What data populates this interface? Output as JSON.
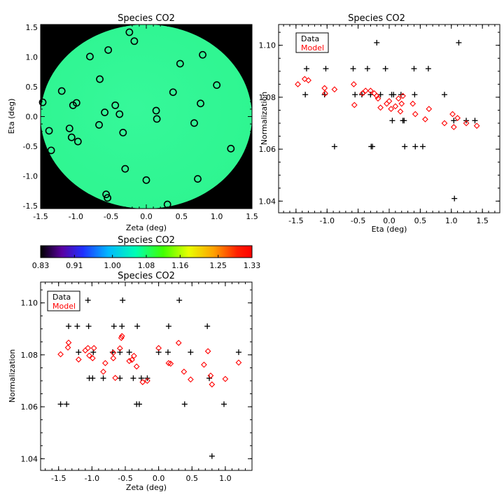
{
  "chart_data": [
    {
      "type": "scatter",
      "id": "map",
      "title": "Species CO2",
      "xlabel": "Zeta (deg)",
      "ylabel": "Eta (deg)",
      "xlim": [
        -1.5,
        1.5
      ],
      "ylim": [
        -1.55,
        1.55
      ],
      "xticks": [
        "-1.5",
        "-1.0",
        "-0.5",
        "0.0",
        "0.5",
        "1.0",
        "1.5"
      ],
      "xtick_values": [
        -1.5,
        -1.0,
        -0.5,
        0.0,
        0.5,
        1.0,
        1.5
      ],
      "yticks": [
        "1.5",
        "1.0",
        "0.5",
        "0.0",
        "-0.5",
        "-1.0",
        "-1.5"
      ],
      "ytick_values": [
        1.5,
        1.0,
        0.5,
        0.0,
        -0.5,
        -1.0,
        -1.5
      ],
      "field_radius_deg": 1.5,
      "field_value": 1.085,
      "background": "#000000",
      "field_color": "#33f79a",
      "marker": "open-circle",
      "points": [
        {
          "zeta": -0.24,
          "eta": 1.42
        },
        {
          "zeta": -0.17,
          "eta": 1.27
        },
        {
          "zeta": -0.54,
          "eta": 1.12
        },
        {
          "zeta": -0.8,
          "eta": 1.01
        },
        {
          "zeta": 0.8,
          "eta": 1.04
        },
        {
          "zeta": 0.48,
          "eta": 0.89
        },
        {
          "zeta": -0.66,
          "eta": 0.63
        },
        {
          "zeta": 1.0,
          "eta": 0.53
        },
        {
          "zeta": -1.2,
          "eta": 0.43
        },
        {
          "zeta": 0.38,
          "eta": 0.41
        },
        {
          "zeta": -1.47,
          "eta": 0.24
        },
        {
          "zeta": -0.99,
          "eta": 0.23
        },
        {
          "zeta": -1.04,
          "eta": 0.19
        },
        {
          "zeta": -0.44,
          "eta": 0.19
        },
        {
          "zeta": 0.77,
          "eta": 0.22
        },
        {
          "zeta": -0.59,
          "eta": 0.07
        },
        {
          "zeta": -0.38,
          "eta": 0.04
        },
        {
          "zeta": 0.14,
          "eta": 0.1
        },
        {
          "zeta": 0.15,
          "eta": -0.04
        },
        {
          "zeta": 0.68,
          "eta": -0.11
        },
        {
          "zeta": -0.67,
          "eta": -0.14
        },
        {
          "zeta": -1.38,
          "eta": -0.24
        },
        {
          "zeta": -1.09,
          "eta": -0.2
        },
        {
          "zeta": -0.33,
          "eta": -0.27
        },
        {
          "zeta": -1.06,
          "eta": -0.35
        },
        {
          "zeta": -0.97,
          "eta": -0.42
        },
        {
          "zeta": -1.35,
          "eta": -0.57
        },
        {
          "zeta": 1.2,
          "eta": -0.54
        },
        {
          "zeta": -0.3,
          "eta": -0.88
        },
        {
          "zeta": 0.73,
          "eta": -1.05
        },
        {
          "zeta": 0.0,
          "eta": -1.07
        },
        {
          "zeta": -0.57,
          "eta": -1.31
        },
        {
          "zeta": -0.55,
          "eta": -1.37
        },
        {
          "zeta": 0.3,
          "eta": -1.48
        }
      ]
    },
    {
      "type": "colorbar",
      "id": "colorbar",
      "title": "Species CO2",
      "range": [
        0.83,
        1.33
      ],
      "ticks": [
        "0.83",
        "0.91",
        "1.00",
        "1.08",
        "1.16",
        "1.25",
        "1.33"
      ],
      "tick_values": [
        0.83,
        0.91,
        1.0,
        1.08,
        1.16,
        1.25,
        1.33
      ],
      "colormap": [
        "#000000",
        "#5a00a0",
        "#2030ff",
        "#00b8ff",
        "#00ffb4",
        "#40ff00",
        "#e8ff00",
        "#ffa000",
        "#ff2000",
        "#ff0000"
      ]
    },
    {
      "type": "scatter",
      "id": "norm_eta",
      "title": "Species CO2",
      "xlabel": "Eta (deg)",
      "ylabel": "Normalization",
      "xlim": [
        -1.78,
        1.78
      ],
      "ylim": [
        1.0355,
        1.108
      ],
      "xticks": [
        "-1.5",
        "-1.0",
        "-0.5",
        "0.0",
        "0.5",
        "1.0",
        "1.5"
      ],
      "xtick_values": [
        -1.5,
        -1.0,
        -0.5,
        0.0,
        0.5,
        1.0,
        1.5
      ],
      "yticks": [
        "1.10",
        "1.08",
        "1.06",
        "1.04"
      ],
      "ytick_values": [
        1.1,
        1.08,
        1.06,
        1.04
      ],
      "legend": [
        "Data",
        "Model"
      ],
      "series_colors": [
        "#000000",
        "#ff0000"
      ],
      "data": {
        "name": "Data",
        "marker": "plus",
        "points": [
          [
            -1.35,
            1.081
          ],
          [
            -1.33,
            1.091
          ],
          [
            -1.04,
            1.081
          ],
          [
            -1.02,
            1.091
          ],
          [
            -0.88,
            1.061
          ],
          [
            -0.58,
            1.091
          ],
          [
            -0.55,
            1.081
          ],
          [
            -0.44,
            1.081
          ],
          [
            -0.35,
            1.091
          ],
          [
            -0.3,
            1.081
          ],
          [
            -0.29,
            1.061
          ],
          [
            -0.27,
            1.061
          ],
          [
            -0.2,
            1.101
          ],
          [
            -0.14,
            1.081
          ],
          [
            -0.06,
            1.091
          ],
          [
            0.04,
            1.081
          ],
          [
            0.07,
            1.081
          ],
          [
            0.05,
            1.071
          ],
          [
            0.19,
            1.081
          ],
          [
            0.22,
            1.071
          ],
          [
            0.24,
            1.071
          ],
          [
            0.25,
            1.061
          ],
          [
            0.4,
            1.091
          ],
          [
            0.42,
            1.061
          ],
          [
            0.41,
            1.081
          ],
          [
            0.54,
            1.061
          ],
          [
            0.63,
            1.091
          ],
          [
            0.89,
            1.081
          ],
          [
            1.04,
            1.071
          ],
          [
            1.05,
            1.041
          ],
          [
            1.12,
            1.101
          ],
          [
            1.24,
            1.071
          ],
          [
            1.38,
            1.071
          ]
        ]
      },
      "model": {
        "name": "Model",
        "marker": "diamond",
        "points": [
          [
            -1.47,
            1.085
          ],
          [
            -1.36,
            1.087
          ],
          [
            -1.3,
            1.0865
          ],
          [
            -1.04,
            1.0835
          ],
          [
            -1.03,
            1.0815
          ],
          [
            -0.88,
            1.083
          ],
          [
            -0.57,
            1.085
          ],
          [
            -0.56,
            1.077
          ],
          [
            -0.43,
            1.0815
          ],
          [
            -0.38,
            1.0825
          ],
          [
            -0.3,
            1.0825
          ],
          [
            -0.24,
            1.0815
          ],
          [
            -0.2,
            1.0805
          ],
          [
            -0.18,
            1.0795
          ],
          [
            -0.14,
            1.076
          ],
          [
            -0.04,
            1.0775
          ],
          [
            0.0,
            1.0785
          ],
          [
            0.03,
            1.0755
          ],
          [
            0.1,
            1.0765
          ],
          [
            0.15,
            1.0795
          ],
          [
            0.18,
            1.0745
          ],
          [
            0.2,
            1.0775
          ],
          [
            0.22,
            1.0805
          ],
          [
            0.38,
            1.0775
          ],
          [
            0.42,
            1.0735
          ],
          [
            0.58,
            1.0715
          ],
          [
            0.64,
            1.0755
          ],
          [
            0.89,
            1.07
          ],
          [
            1.02,
            1.0735
          ],
          [
            1.04,
            1.0685
          ],
          [
            1.1,
            1.072
          ],
          [
            1.24,
            1.07
          ],
          [
            1.41,
            1.069
          ]
        ]
      }
    },
    {
      "type": "scatter",
      "id": "norm_zeta",
      "title": "Species CO2",
      "xlabel": "Zeta (deg)",
      "ylabel": "Normalization",
      "xlim": [
        -1.77,
        1.4
      ],
      "ylim": [
        1.0355,
        1.108
      ],
      "xticks": [
        "-1.5",
        "-1.0",
        "-0.5",
        "0.0",
        "0.5",
        "1.0"
      ],
      "xtick_values": [
        -1.5,
        -1.0,
        -0.5,
        0.0,
        0.5,
        1.0
      ],
      "yticks": [
        "1.10",
        "1.08",
        "1.06",
        "1.04"
      ],
      "ytick_values": [
        1.1,
        1.08,
        1.06,
        1.04
      ],
      "legend": [
        "Data",
        "Model"
      ],
      "series_colors": [
        "#000000",
        "#ff0000"
      ],
      "data": {
        "name": "Data",
        "marker": "plus",
        "points": [
          [
            -1.47,
            1.061
          ],
          [
            -1.38,
            1.061
          ],
          [
            -1.35,
            1.091
          ],
          [
            -1.22,
            1.091
          ],
          [
            -1.2,
            1.081
          ],
          [
            -1.06,
            1.101
          ],
          [
            -1.04,
            1.071
          ],
          [
            -1.05,
            1.091
          ],
          [
            -0.99,
            1.071
          ],
          [
            -0.98,
            1.081
          ],
          [
            -0.83,
            1.071
          ],
          [
            -0.69,
            1.081
          ],
          [
            -0.67,
            1.091
          ],
          [
            -0.58,
            1.081
          ],
          [
            -0.55,
            1.091
          ],
          [
            -0.54,
            1.101
          ],
          [
            -0.58,
            1.071
          ],
          [
            -0.44,
            1.081
          ],
          [
            -0.38,
            1.071
          ],
          [
            -0.32,
            1.091
          ],
          [
            -0.33,
            1.061
          ],
          [
            -0.29,
            1.061
          ],
          [
            -0.26,
            1.071
          ],
          [
            -0.17,
            1.071
          ],
          [
            0.0,
            1.081
          ],
          [
            0.14,
            1.081
          ],
          [
            0.15,
            1.091
          ],
          [
            0.31,
            1.101
          ],
          [
            0.39,
            1.061
          ],
          [
            0.48,
            1.081
          ],
          [
            0.73,
            1.091
          ],
          [
            0.76,
            1.071
          ],
          [
            0.8,
            1.041
          ],
          [
            0.98,
            1.061
          ],
          [
            1.2,
            1.081
          ]
        ]
      },
      "model": {
        "name": "Model",
        "marker": "diamond",
        "points": [
          [
            -1.47,
            1.0802
          ],
          [
            -1.36,
            1.0828
          ],
          [
            -1.35,
            1.0847
          ],
          [
            -1.2,
            1.0782
          ],
          [
            -1.1,
            1.0817
          ],
          [
            -1.06,
            1.0826
          ],
          [
            -1.04,
            1.0797
          ],
          [
            -0.99,
            1.0787
          ],
          [
            -0.97,
            1.0826
          ],
          [
            -0.83,
            1.0735
          ],
          [
            -0.8,
            1.0768
          ],
          [
            -0.68,
            1.0808
          ],
          [
            -0.68,
            1.0787
          ],
          [
            -0.65,
            1.0711
          ],
          [
            -0.58,
            1.0825
          ],
          [
            -0.56,
            1.0865
          ],
          [
            -0.55,
            1.0872
          ],
          [
            -0.44,
            1.0776
          ],
          [
            -0.4,
            1.0781
          ],
          [
            -0.37,
            1.0796
          ],
          [
            -0.33,
            1.0755
          ],
          [
            -0.24,
            1.0695
          ],
          [
            -0.17,
            1.07
          ],
          [
            0.0,
            1.0826
          ],
          [
            0.15,
            1.0768
          ],
          [
            0.18,
            1.0766
          ],
          [
            0.3,
            1.0846
          ],
          [
            0.38,
            1.0735
          ],
          [
            0.48,
            1.0705
          ],
          [
            0.68,
            1.0762
          ],
          [
            0.74,
            1.0814
          ],
          [
            0.78,
            1.072
          ],
          [
            0.8,
            1.0686
          ],
          [
            1.0,
            1.0707
          ],
          [
            1.2,
            1.077
          ]
        ]
      }
    }
  ]
}
